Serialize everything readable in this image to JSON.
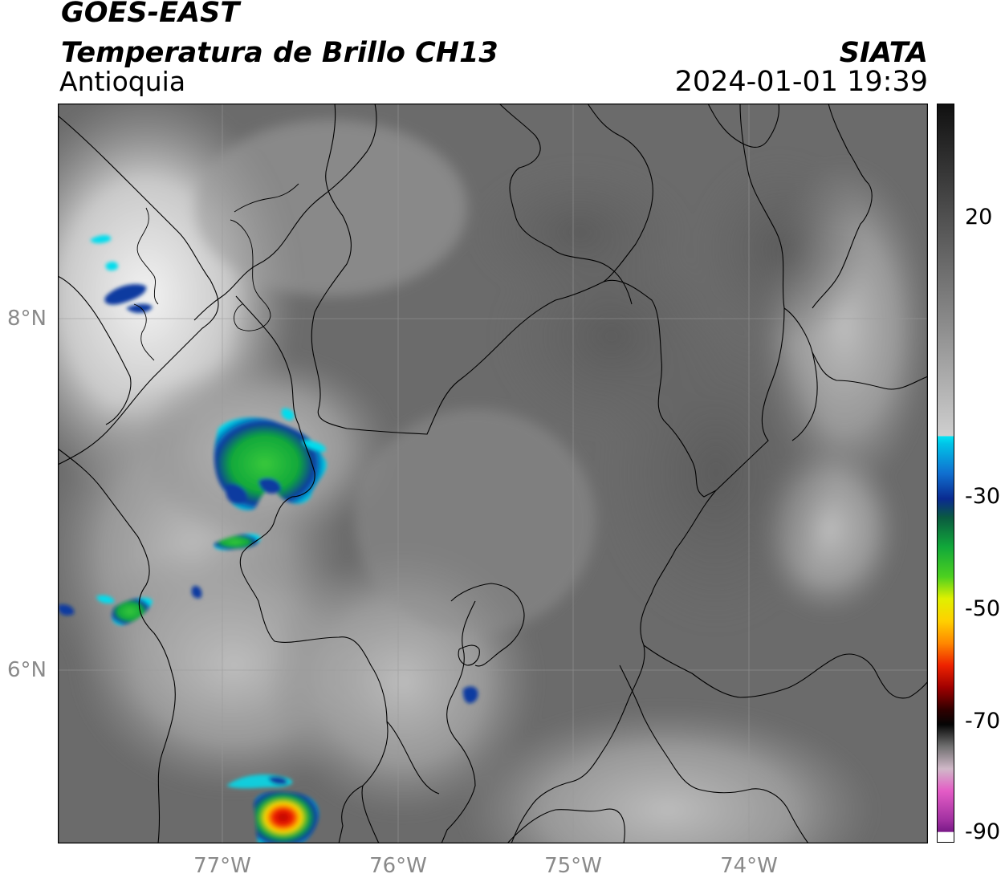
{
  "header": {
    "satellite": "GOES-EAST",
    "product": "Temperatura de Brillo CH13",
    "region": "Antioquia",
    "brand": "SIATA",
    "datetime": "2024-01-01 19:39"
  },
  "map": {
    "lat_labels": [
      "8°N",
      "6°N"
    ],
    "lon_labels": [
      "77°W",
      "76°W",
      "75°W",
      "74°W"
    ],
    "colors": {
      "background": "#6a6a6a",
      "borders": "#000000",
      "gridlines": "#9a9a9a"
    }
  },
  "colorbar": {
    "ticks": [
      "20",
      "-30",
      "-50",
      "-70",
      "-90"
    ],
    "colors": {
      "top": "#141414",
      "gray_mid": "#9a9a9a",
      "white": "#f8f8f8",
      "cyan": "#00ddee",
      "blue": "#0a3aa0",
      "green": "#11a83a",
      "yellow": "#ffd800",
      "red": "#e00000",
      "black": "#050505",
      "pink": "#e050c0",
      "purple": "#8a1d90"
    }
  }
}
